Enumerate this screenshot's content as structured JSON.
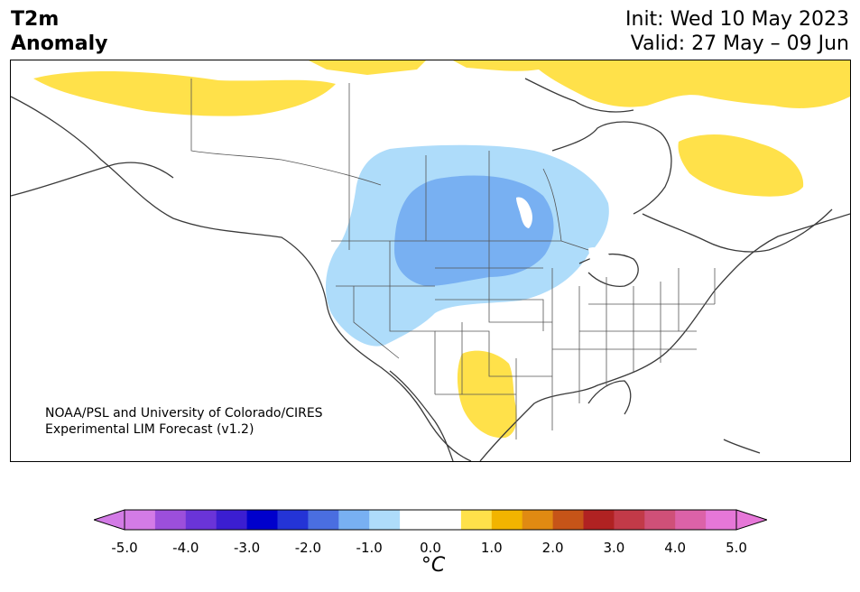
{
  "header": {
    "variable": "T2m",
    "field": "Anomaly",
    "init": "Init: Wed 10 May 2023",
    "valid": "Valid: 27 May – 09 Jun"
  },
  "credit": {
    "line1": "NOAA/PSL and University of Colorado/CIRES",
    "line2": "Experimental LIM Forecast (v1.2)"
  },
  "colorbar": {
    "unit": "°C",
    "colors": [
      "#d37be6",
      "#9c4fdb",
      "#6a34d8",
      "#3b1ed1",
      "#0000cc",
      "#2434d6",
      "#4a6ee0",
      "#78b0f2",
      "#aedcfa",
      "#ffffff",
      "#ffffff",
      "#ffe14a",
      "#f2b400",
      "#e08a12",
      "#c65418",
      "#b02222",
      "#c23a48",
      "#cf5078",
      "#dc62a8",
      "#e677d8"
    ],
    "extend_min_color": "#d37be6",
    "extend_max_color": "#e677d8",
    "ticks": [
      "-5.0",
      "-4.0",
      "-3.0",
      "-2.0",
      "-1.0",
      "0.0",
      "1.0",
      "2.0",
      "3.0",
      "4.0",
      "5.0"
    ]
  },
  "anomaly_colors": {
    "warm_light": "#ffe14a",
    "cool_light": "#aedcfa",
    "cool_medium": "#78b0f2"
  }
}
